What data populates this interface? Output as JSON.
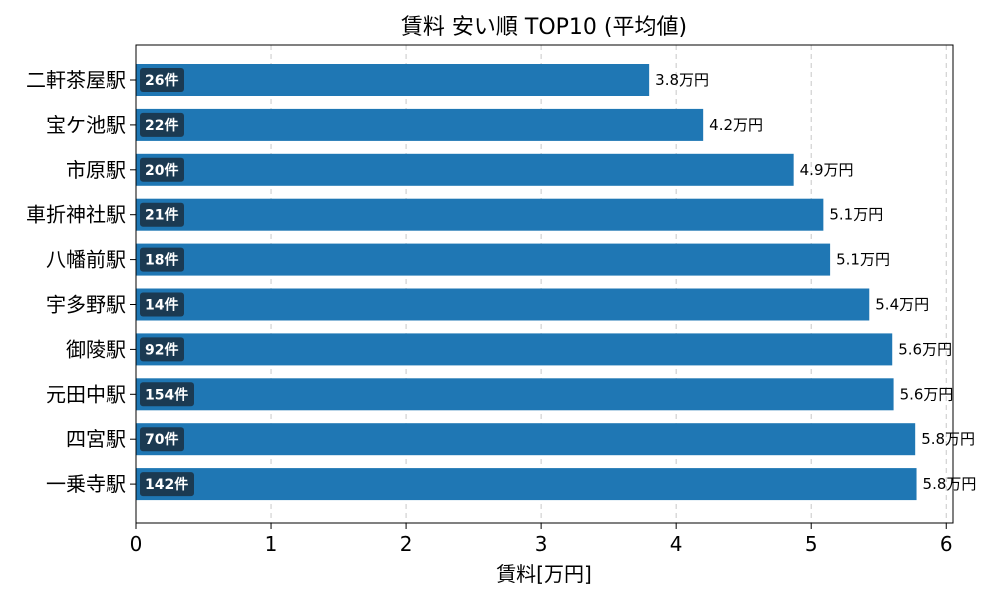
{
  "chart_data": {
    "type": "bar",
    "orientation": "horizontal",
    "title": "賃料 安い順 TOP10 (平均値)",
    "xlabel": "賃料[万円]",
    "ylabel": "",
    "xlim": [
      0,
      6.05
    ],
    "xticks": [
      0,
      1,
      2,
      3,
      4,
      5,
      6
    ],
    "grid": "vertical dashed",
    "categories": [
      "二軒茶屋駅",
      "宝ケ池駅",
      "市原駅",
      "車折神社駅",
      "八幡前駅",
      "宇多野駅",
      "御陵駅",
      "元田中駅",
      "四宮駅",
      "一乗寺駅"
    ],
    "values": [
      3.8,
      4.2,
      4.87,
      5.09,
      5.14,
      5.43,
      5.6,
      5.61,
      5.77,
      5.78
    ],
    "value_labels": [
      "3.8万円",
      "4.2万円",
      "4.9万円",
      "5.1万円",
      "5.1万円",
      "5.4万円",
      "5.6万円",
      "5.6万円",
      "5.8万円",
      "5.8万円"
    ],
    "counts": [
      "26件",
      "22件",
      "20件",
      "21件",
      "18件",
      "14件",
      "92件",
      "154件",
      "70件",
      "142件"
    ],
    "colors": {
      "bar": "#1f77b4",
      "badge": "#1b3a52",
      "grid": "#c8c8c8"
    }
  }
}
